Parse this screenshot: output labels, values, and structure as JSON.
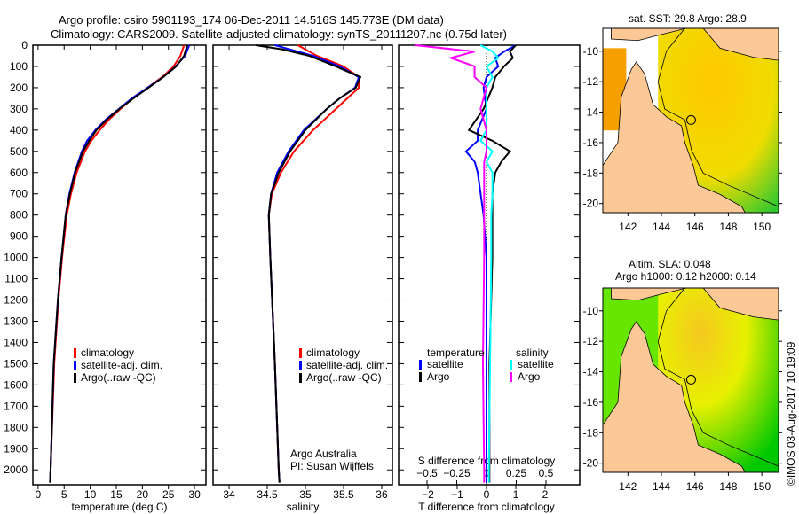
{
  "title": {
    "line1": "Argo profile: csiro 5901193_174 06-Dec-2011 14.516S 145.773E (DM data)",
    "line2": "Climatology: CARS2009. Satellite-adjusted climatology: synTS_20111207.nc (0.75d later)"
  },
  "colors": {
    "climatology": "#ff0000",
    "satellite": "#0000ff",
    "argo": "#000000",
    "sal_satellite": "#00ffff",
    "sal_argo": "#ff00ff",
    "land": "#fcc896"
  },
  "chart_data": [
    {
      "type": "line",
      "name": "temperature",
      "xlabel": "temperature (deg C)",
      "ylabel": "depth",
      "xlim": [
        -1,
        32.2
      ],
      "ylim": [
        2070,
        0
      ],
      "xticks": [
        0,
        5,
        10,
        15,
        20,
        25,
        30
      ],
      "yticks": [
        0,
        100,
        200,
        300,
        400,
        500,
        600,
        700,
        800,
        900,
        1000,
        1100,
        1200,
        1300,
        1400,
        1500,
        1600,
        1700,
        1800,
        1900,
        2000
      ],
      "legend": [
        "climatology",
        "satellite-adj. clim.",
        "Argo(..raw -QC)"
      ],
      "depth": [
        0,
        50,
        100,
        150,
        200,
        250,
        300,
        350,
        400,
        450,
        500,
        600,
        700,
        800,
        1000,
        1200,
        1500,
        2000,
        2060
      ],
      "series": [
        {
          "name": "climatology",
          "values": [
            28.0,
            27.3,
            26.0,
            23.8,
            21.0,
            18.2,
            15.8,
            13.6,
            11.8,
            10.2,
            9.0,
            7.4,
            6.3,
            5.5,
            4.6,
            3.9,
            3.1,
            2.4,
            2.3
          ]
        },
        {
          "name": "satellite-adj. clim.",
          "values": [
            29.0,
            28.2,
            26.4,
            24.0,
            21.0,
            18.0,
            15.5,
            13.0,
            11.0,
            9.4,
            8.4,
            7.0,
            6.0,
            5.3,
            4.5,
            3.8,
            3.0,
            2.4,
            2.3
          ]
        },
        {
          "name": "Argo(..raw -QC)",
          "values": [
            28.6,
            28.0,
            26.5,
            24.0,
            21.2,
            18.3,
            15.6,
            13.2,
            11.2,
            9.8,
            8.6,
            7.1,
            6.1,
            5.3,
            4.5,
            3.8,
            3.0,
            2.4,
            2.3
          ]
        }
      ]
    },
    {
      "type": "line",
      "name": "salinity",
      "xlabel": "salinity",
      "xlim": [
        33.79,
        36.14
      ],
      "ylim": [
        2070,
        0
      ],
      "xticks": [
        34,
        34.5,
        35,
        35.5,
        36
      ],
      "legend": [
        "climatology",
        "satellite-adj. clim.",
        "Argo(..raw -QC)"
      ],
      "annotation": [
        "Argo Australia",
        "PI: Susan Wijffels"
      ],
      "depth": [
        0,
        20,
        50,
        100,
        150,
        200,
        250,
        300,
        400,
        500,
        600,
        700,
        800,
        1000,
        1500,
        2000,
        2060
      ],
      "series": [
        {
          "name": "climatology",
          "values": [
            34.9,
            35.0,
            35.15,
            35.5,
            35.7,
            35.7,
            35.55,
            35.4,
            35.1,
            34.85,
            34.68,
            34.56,
            34.52,
            34.54,
            34.6,
            34.65,
            34.66
          ]
        },
        {
          "name": "satellite-adj. clim.",
          "values": [
            34.6,
            34.8,
            35.1,
            35.45,
            35.7,
            35.65,
            35.45,
            35.28,
            34.98,
            34.78,
            34.63,
            34.55,
            34.52,
            34.54,
            34.6,
            34.65,
            34.66
          ]
        },
        {
          "name": "Argo(..raw -QC)",
          "values": [
            34.35,
            34.7,
            35.05,
            35.4,
            35.72,
            35.66,
            35.45,
            35.28,
            35.0,
            34.8,
            34.65,
            34.55,
            34.52,
            34.54,
            34.6,
            34.65,
            34.66
          ]
        }
      ]
    },
    {
      "type": "line",
      "name": "difference",
      "xlabel": "T difference from climatology",
      "x2label": "S difference from climatology",
      "xlim": [
        -3,
        3.18
      ],
      "ylim": [
        2070,
        0
      ],
      "xticks": [
        "-2",
        "-1",
        "0",
        "1",
        "2"
      ],
      "x2ticks": [
        "-0.5",
        "-0.25",
        "0",
        "0.25",
        "0.5"
      ],
      "legend": {
        "temperature": "temperature",
        "salinity": "salinity",
        "t_sat": "satellite",
        "t_argo": "Argo",
        "s_sat": "satellite",
        "s_argo": "Argo"
      },
      "depth": [
        0,
        30,
        60,
        100,
        150,
        200,
        300,
        400,
        450,
        500,
        550,
        600,
        700,
        800,
        1000,
        1500,
        2000,
        2060
      ],
      "series": [
        {
          "name": "T satellite",
          "values": [
            1.0,
            0.6,
            0.3,
            0.4,
            0.0,
            -0.1,
            0.0,
            -0.3,
            -0.3,
            -0.7,
            -0.4,
            -0.3,
            -0.2,
            -0.1,
            0.0,
            0.0,
            0.0,
            0.0
          ]
        },
        {
          "name": "T Argo",
          "values": [
            1.0,
            0.8,
            0.9,
            0.6,
            0.3,
            0.2,
            -0.1,
            -0.6,
            0.2,
            0.8,
            0.5,
            0.3,
            0.2,
            0.2,
            0.2,
            0.1,
            0.1,
            0.1
          ]
        },
        {
          "name": "S satellite",
          "values": [
            -0.05,
            0.05,
            0.1,
            0.0,
            0.05,
            0.0,
            0.0,
            0.0,
            -0.05,
            0.05,
            0.0,
            0.05,
            0.05,
            0.04,
            0.04,
            0.03,
            0.02,
            0.02
          ]
        },
        {
          "name": "S Argo",
          "values": [
            -0.6,
            -0.1,
            -0.3,
            -0.1,
            -0.1,
            0.0,
            -0.05,
            0.0,
            0.0,
            0.0,
            -0.02,
            -0.02,
            -0.02,
            -0.02,
            -0.02,
            -0.03,
            -0.02,
            -0.02
          ]
        }
      ]
    }
  ],
  "maps": {
    "sst": {
      "title": "sat. SST: 29.8 Argo: 28.9"
    },
    "sla": {
      "title1": "Altim. SLA: 0.048",
      "title2": "Argo h1000: 0.12 h2000: 0.14"
    },
    "lat_ticks": [
      "-10",
      "-12",
      "-14",
      "-16",
      "-18",
      "-20"
    ],
    "lon_ticks": [
      "142",
      "144",
      "146",
      "148",
      "150"
    ]
  },
  "credit": "©IMOS 03-Aug-2017 10:19:09"
}
